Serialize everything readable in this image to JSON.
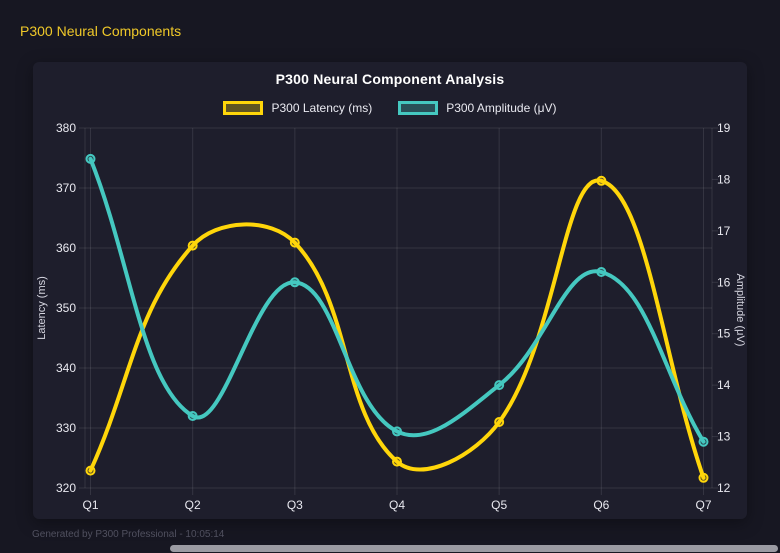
{
  "header": {
    "title": "P300 Neural Components"
  },
  "footer": {
    "text": "Generated by P300 Professional - 10:05:14"
  },
  "colors": {
    "background": "#171722",
    "card": "#1e1e2c",
    "grid": "rgba(255,255,255,0.10)",
    "header_text": "#f0c929",
    "title_text": "#ffffff",
    "tick_text": "#e9e9f0",
    "axis_title_text": "#d6d6e0",
    "footer_text": "#50505f",
    "scrollbar": "#9b9ba3",
    "accent_yellow": "#ffd60a",
    "accent_teal": "#45c8c0"
  },
  "chart_data": {
    "type": "line",
    "title": "P300 Neural Component Analysis",
    "categories": [
      "Q1",
      "Q2",
      "Q3",
      "Q4",
      "Q5",
      "Q6",
      "Q7"
    ],
    "series": [
      {
        "name": "P300 Latency (ms)",
        "axis": "left",
        "color": "#ffd60a",
        "values": [
          322.9,
          360.4,
          360.9,
          324.4,
          331.0,
          371.2,
          321.7
        ]
      },
      {
        "name": "P300 Amplitude (μV)",
        "axis": "right",
        "color": "#45c8c0",
        "values": [
          18.4,
          13.4,
          16.0,
          13.1,
          14.0,
          16.2,
          12.9
        ]
      }
    ],
    "left_axis": {
      "label": "Latency (ms)",
      "min": 320,
      "max": 380,
      "ticks": [
        380,
        370,
        360,
        350,
        340,
        330,
        320
      ]
    },
    "right_axis": {
      "label": "Amplitude (μV)",
      "min": 12,
      "max": 19,
      "ticks": [
        19,
        18,
        17,
        16,
        15,
        14,
        13,
        12
      ]
    },
    "grid": true,
    "legend_position": "top",
    "line_tension": 0.4,
    "line_width": 4
  }
}
